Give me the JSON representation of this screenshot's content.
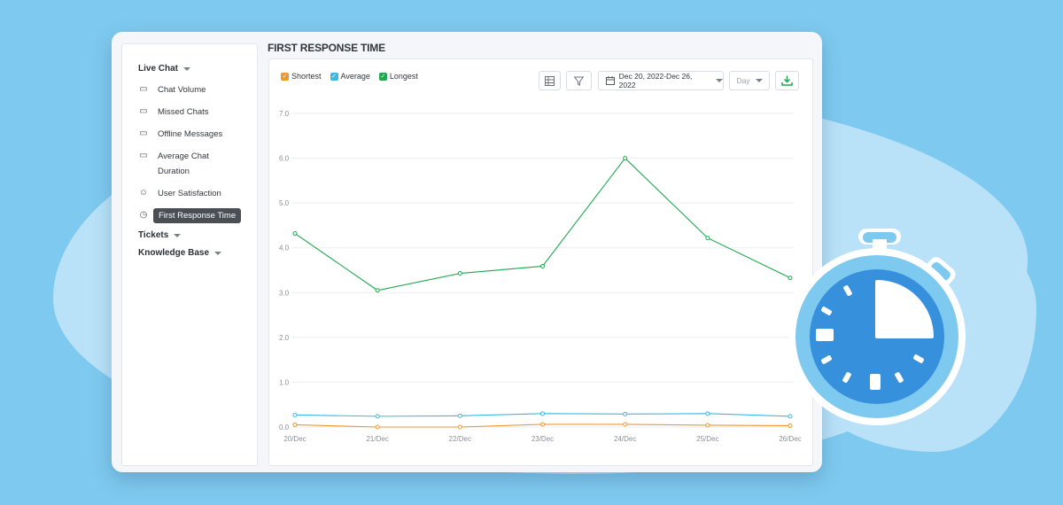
{
  "sidebar": {
    "live_chat": "Live Chat",
    "items": [
      {
        "label": "Chat Volume",
        "icon": "chat-volume-icon"
      },
      {
        "label": "Missed Chats",
        "icon": "missed-chats-icon"
      },
      {
        "label": "Offline Messages",
        "icon": "offline-messages-icon"
      },
      {
        "label_line1": "Average Chat",
        "label_line2": "Duration",
        "icon": "average-duration-icon"
      },
      {
        "label": "User Satisfaction",
        "icon": "user-satisfaction-icon"
      },
      {
        "label": "First Response Time",
        "icon": "alarm-clock-icon"
      }
    ],
    "tickets": "Tickets",
    "knowledge_base": "Knowledge Base"
  },
  "page_title": "FIRST RESPONSE TIME",
  "toolbar": {
    "date_range": "Dec 20, 2022-Dec 26, 2022",
    "granularity": "Day"
  },
  "colors": {
    "shortest": "#f0962e",
    "average": "#3ab8e3",
    "longest": "#1fa84f",
    "accent": "#1fa84f"
  },
  "chart_data": {
    "type": "line",
    "x": [
      "20/Dec",
      "21/Dec",
      "22/Dec",
      "23/Dec",
      "24/Dec",
      "25/Dec",
      "26/Dec"
    ],
    "series": [
      {
        "name": "Shortest",
        "values": [
          0.05,
          0.0,
          0.0,
          0.06,
          0.06,
          0.04,
          0.03
        ]
      },
      {
        "name": "Average",
        "values": [
          0.27,
          0.24,
          0.25,
          0.3,
          0.29,
          0.3,
          0.24
        ]
      },
      {
        "name": "Longest",
        "values": [
          4.32,
          3.05,
          3.43,
          3.59,
          6.0,
          4.22,
          3.33
        ]
      }
    ],
    "yticks": [
      "0.0",
      "1.0",
      "2.0",
      "3.0",
      "4.0",
      "5.0",
      "6.0",
      "7.0"
    ],
    "ylim": [
      0,
      7
    ],
    "legend_position": "top-left",
    "grid": true
  }
}
